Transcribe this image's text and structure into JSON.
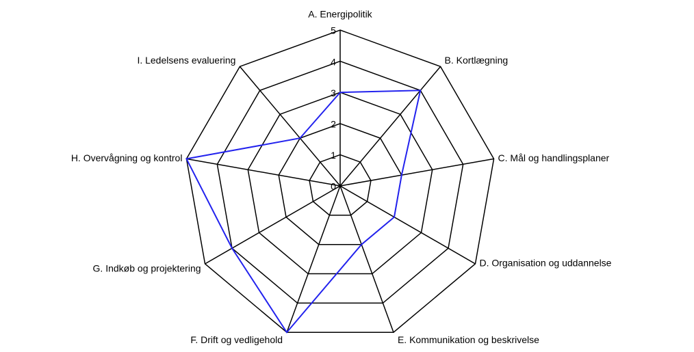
{
  "chart_data": {
    "type": "radar",
    "categories": [
      "A. Energipolitik",
      "B. Kortlægning",
      "C. Mål og handlingsplaner",
      "D. Organisation og uddannelse",
      "E. Kommunikation og beskrivelse",
      "F. Drift og vedligehold",
      "G. Indkøb og projektering",
      "H. Overvågning og kontrol",
      "I. Ledelsens evaluering"
    ],
    "values": [
      3,
      4,
      2,
      2,
      2,
      5,
      4,
      5,
      2
    ],
    "color": "#2222ee",
    "rlim": [
      0,
      5
    ],
    "rticks": [
      0,
      1,
      2,
      3,
      4,
      5
    ],
    "grid": true
  }
}
